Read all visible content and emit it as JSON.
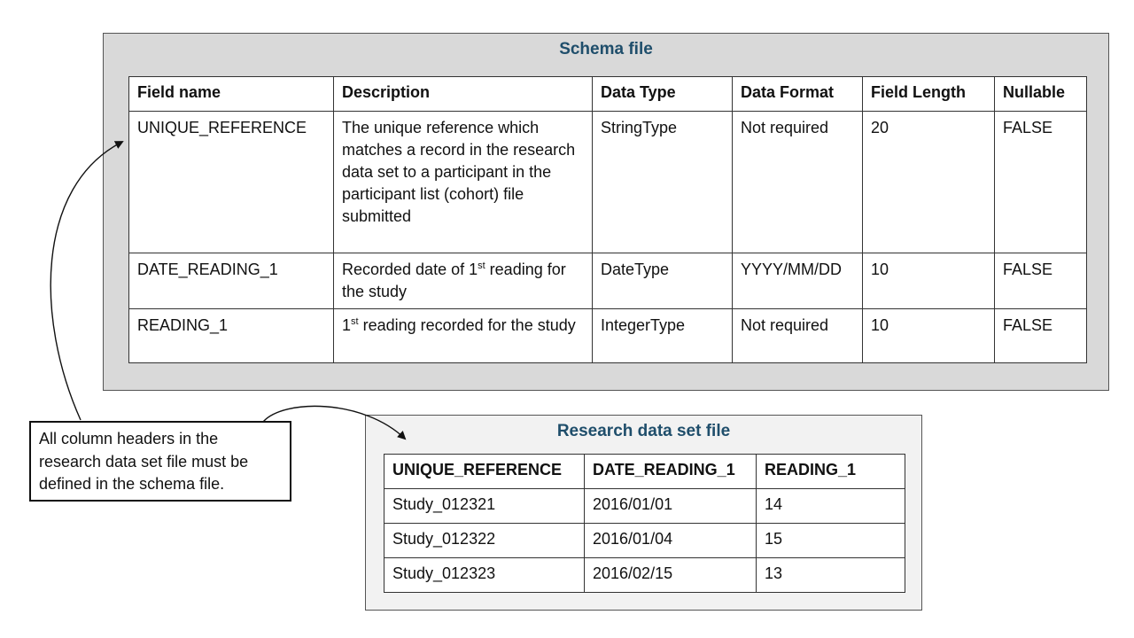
{
  "schema": {
    "title": "Schema file",
    "headers": [
      "Field name",
      "Description",
      "Data Type",
      "Data Format",
      "Field Length",
      "Nullable"
    ],
    "rows": [
      {
        "field_name": "UNIQUE_REFERENCE",
        "description": "The unique reference which matches a record in the research data set to a participant in the participant list (cohort) file submitted",
        "data_type": "StringType",
        "data_format": "Not required",
        "field_length": "20",
        "nullable": "FALSE"
      },
      {
        "field_name": "DATE_READING_1",
        "description_pre": "Recorded date of 1",
        "description_sup": "st",
        "description_post": " reading for the study",
        "data_type": "DateType",
        "data_format": "YYYY/MM/DD",
        "field_length": "10",
        "nullable": "FALSE"
      },
      {
        "field_name": "READING_1",
        "description_pre": "1",
        "description_sup": "st",
        "description_post": " reading recorded for the study",
        "data_type": "IntegerType",
        "data_format": "Not required",
        "field_length": "10",
        "nullable": "FALSE"
      }
    ]
  },
  "research": {
    "title": "Research data set file",
    "headers": [
      "UNIQUE_REFERENCE",
      "DATE_READING_1",
      "READING_1"
    ],
    "rows": [
      [
        "Study_012321",
        "2016/01/01",
        "14"
      ],
      [
        "Study_012322",
        "2016/01/04",
        "15"
      ],
      [
        "Study_012323",
        "2016/02/15",
        "13"
      ]
    ]
  },
  "note": {
    "text": "All column headers in the research data set file must be defined in the schema file."
  },
  "colors": {
    "schema_panel_bg": "#d9d9d9",
    "research_panel_bg": "#f2f2f2",
    "title_color": "#1f4e6b",
    "border": "#333333"
  }
}
